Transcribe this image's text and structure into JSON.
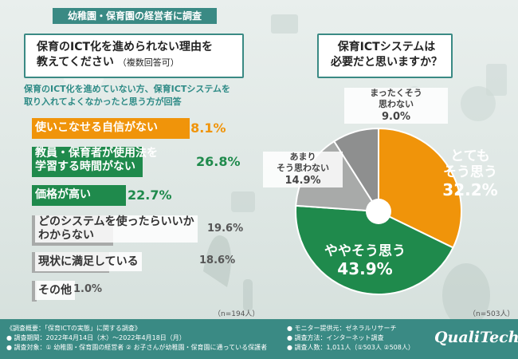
{
  "header": {
    "tag": "幼稚園・保育園の経営者に調査"
  },
  "left_question": {
    "title_line1": "保育のICT化を進められない理由を",
    "title_line2": "教えてください",
    "title_sub": "（複数回答可）"
  },
  "left_note": {
    "line1": "保育のICT化を進めていない方、保育ICTシステムを",
    "line2": "取り入れてよくなかったと思う方が回答"
  },
  "right_question": {
    "line1": "保育ICTシステムは",
    "line2": "必要だと思いますか？"
  },
  "colors": {
    "teal": "#3a8a84",
    "orange": "#f0940a",
    "green": "#1f8a4c",
    "grey": "#a8aaa9",
    "dark_grey": "#8e8f8f"
  },
  "chart_data": [
    {
      "type": "bar",
      "orientation": "horizontal",
      "categories": [
        "使いこなせる自信がない",
        "教員・保育者が使用法を学習する時間がない",
        "価格が高い",
        "どのシステムを使ったらいいかわからない",
        "現状に満足している",
        "その他"
      ],
      "category_lines": [
        [
          "使いこなせる自信がない"
        ],
        [
          "教員・保育者が使用法を",
          "学習する時間がない"
        ],
        [
          "価格が高い"
        ],
        [
          "どのシステムを使ったらいいか",
          "わからない"
        ],
        [
          "現状に満足している"
        ],
        [
          "その他"
        ]
      ],
      "values": [
        38.1,
        26.8,
        22.7,
        19.6,
        18.6,
        1.0
      ],
      "value_labels": [
        "38.1%",
        "26.8%",
        "22.7%",
        "19.6%",
        "18.6%",
        "1.0%"
      ],
      "n_label": "（n=194人）"
    },
    {
      "type": "pie",
      "slices": [
        {
          "label_lines": [
            "とても",
            "そう思う"
          ],
          "value": 32.2,
          "value_label": "32.2%"
        },
        {
          "label_lines": [
            "ややそう思う"
          ],
          "value": 43.9,
          "value_label": "43.9%"
        },
        {
          "label_lines": [
            "あまり",
            "そう思わない"
          ],
          "value": 14.9,
          "value_label": "14.9%"
        },
        {
          "label_lines": [
            "まったくそう",
            "思わない"
          ],
          "value": 9.0,
          "value_label": "9.0%"
        }
      ],
      "n_label": "（n=503人）"
    }
  ],
  "footer": {
    "left": [
      "《調査概要：「保育ICTの実態」に関する調査》",
      "● 調査期間：2022年4月14日（木）〜2022年4月18日（月）",
      "● 調査対象：① 幼稚園・保育園の経営者 ② お子さんが幼稚園・保育園に通っている保護者"
    ],
    "right": [
      "● モニター提供元：ゼネラルリサーチ",
      "● 調査方法：インターネット調査",
      "● 調査人数：1,011人（①503人 ②508人）"
    ],
    "logo": "QualiTech"
  }
}
